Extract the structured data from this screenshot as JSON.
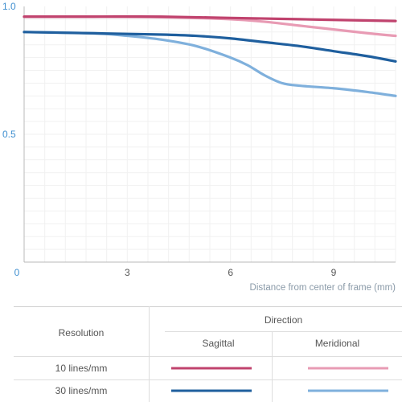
{
  "chart_data": {
    "type": "line",
    "xlabel": "Distance from center of frame (mm)",
    "ylabel": "",
    "xlim": [
      0,
      10.8
    ],
    "ylim": [
      0,
      1.0
    ],
    "x_ticks": [
      "0",
      "3",
      "6",
      "9"
    ],
    "y_ticks": [
      "0.5",
      "1.0"
    ],
    "grid": true,
    "series": [
      {
        "resolution": "10 lines/mm",
        "direction": "Sagittal",
        "color": "#c0436e",
        "x": [
          0,
          2,
          4,
          6,
          8,
          10,
          10.8
        ],
        "y": [
          0.96,
          0.96,
          0.96,
          0.955,
          0.95,
          0.945,
          0.943
        ]
      },
      {
        "resolution": "10 lines/mm",
        "direction": "Meridional",
        "color": "#e89bb4",
        "x": [
          0,
          2,
          4,
          6,
          7,
          8,
          9,
          10,
          10.8
        ],
        "y": [
          0.96,
          0.96,
          0.958,
          0.95,
          0.94,
          0.925,
          0.91,
          0.895,
          0.885
        ]
      },
      {
        "resolution": "30 lines/mm",
        "direction": "Sagittal",
        "color": "#1f5f9e",
        "x": [
          0,
          2,
          4,
          5,
          6,
          7,
          8,
          9,
          10,
          10.8
        ],
        "y": [
          0.9,
          0.895,
          0.89,
          0.885,
          0.875,
          0.86,
          0.845,
          0.825,
          0.805,
          0.785
        ]
      },
      {
        "resolution": "30 lines/mm",
        "direction": "Meridional",
        "color": "#7fb0dc",
        "x": [
          0,
          2,
          3,
          4,
          5,
          6,
          6.5,
          7,
          7.5,
          8,
          9,
          10,
          10.8
        ],
        "y": [
          0.9,
          0.895,
          0.885,
          0.87,
          0.845,
          0.8,
          0.77,
          0.73,
          0.7,
          0.69,
          0.68,
          0.665,
          0.65
        ]
      }
    ]
  },
  "legend": {
    "resolution_header": "Resolution",
    "direction_header": "Direction",
    "sagittal_label": "Sagittal",
    "meridional_label": "Meridional",
    "rows": [
      {
        "label": "10 lines/mm",
        "sagittal_color": "#c0436e",
        "meridional_color": "#e89bb4"
      },
      {
        "label": "30 lines/mm",
        "sagittal_color": "#1f5f9e",
        "meridional_color": "#7fb0dc"
      }
    ]
  }
}
